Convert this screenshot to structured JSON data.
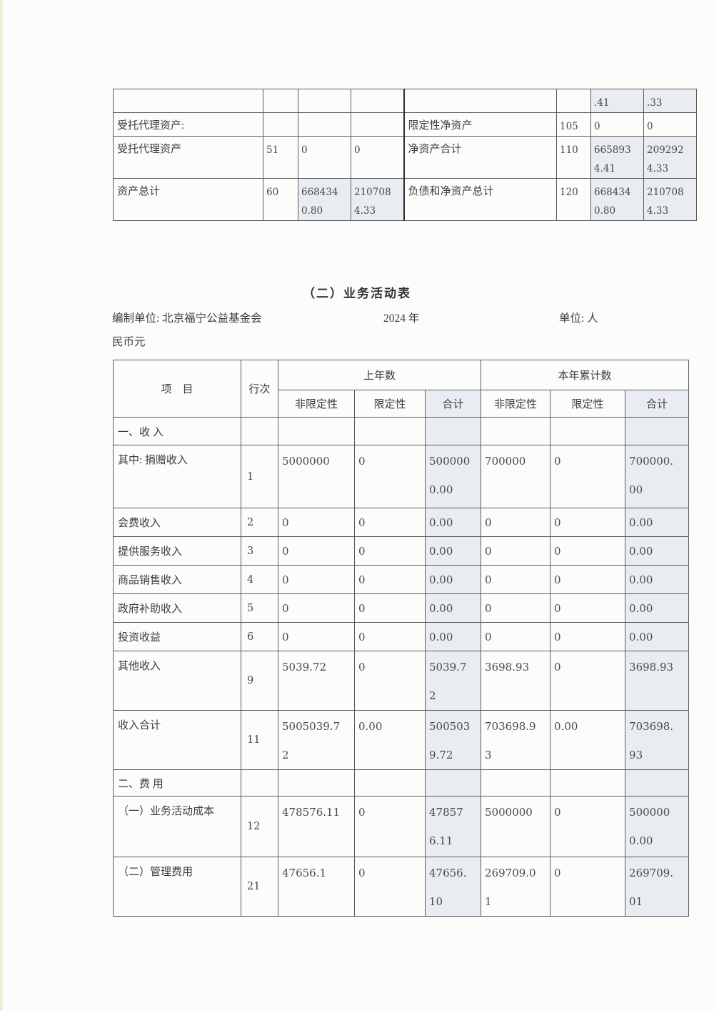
{
  "balance_sheet_fragment": {
    "rows": [
      {
        "cells": [
          "",
          "",
          "",
          "",
          "",
          "",
          ".41",
          ".33"
        ]
      },
      {
        "cells": [
          "受托代理资产:",
          "",
          "",
          "",
          "限定性净资产",
          "105",
          "0",
          "0"
        ]
      },
      {
        "cells": [
          "受托代理资产",
          "51",
          "0",
          "0",
          "净资产合计",
          "110",
          "6658934.41",
          "2092924.33"
        ]
      },
      {
        "cells": [
          "资产总计",
          "60",
          "6684340.80",
          "2107084.33",
          "负债和净资产总计",
          "120",
          "6684340.80",
          "2107084.33"
        ]
      }
    ]
  },
  "section_title": "（二）业务活动表",
  "meta": {
    "prepared_by": "编制单位: 北京福宁公益基金会",
    "year": "2024 年",
    "unit": "单位: 人",
    "unit_cont": "民币元"
  },
  "activity_table": {
    "header": {
      "item": "项　目",
      "line_no": "行次",
      "prev_year": "上年数",
      "current_year": "本年累计数",
      "sub": [
        "非限定性",
        "限定性",
        "合计",
        "非限定性",
        "限定性",
        "合计"
      ]
    },
    "rows": [
      {
        "type": "section",
        "label": "一、收  入",
        "line": "",
        "values": [
          "",
          "",
          "",
          "",
          "",
          ""
        ]
      },
      {
        "type": "data",
        "label": "其中: 捐赠收入",
        "line": "1",
        "values": [
          "5000000",
          "0",
          "5000000.00",
          "700000",
          "0",
          "700000.00"
        ]
      },
      {
        "type": "data",
        "label": "会费收入",
        "line": "2",
        "values": [
          "0",
          "0",
          "0.00",
          "0",
          "0",
          "0.00"
        ]
      },
      {
        "type": "data",
        "label": "提供服务收入",
        "line": "3",
        "values": [
          "0",
          "0",
          "0.00",
          "0",
          "0",
          "0.00"
        ]
      },
      {
        "type": "data",
        "label": "商品销售收入",
        "line": "4",
        "values": [
          "0",
          "0",
          "0.00",
          "0",
          "0",
          "0.00"
        ]
      },
      {
        "type": "data",
        "label": "政府补助收入",
        "line": "5",
        "values": [
          "0",
          "0",
          "0.00",
          "0",
          "0",
          "0.00"
        ]
      },
      {
        "type": "data",
        "label": "投资收益",
        "line": "6",
        "values": [
          "0",
          "0",
          "0.00",
          "0",
          "0",
          "0.00"
        ]
      },
      {
        "type": "data",
        "label": "其他收入",
        "line": "9",
        "values": [
          "5039.72",
          "0",
          "5039.72",
          "3698.93",
          "0",
          "3698.93"
        ]
      },
      {
        "type": "data",
        "label": "收入合计",
        "line": "11",
        "values": [
          "5005039.72",
          "0.00",
          "5005039.72",
          "703698.93",
          "0.00",
          "703698.93"
        ]
      },
      {
        "type": "section",
        "label": "二、费  用",
        "line": "",
        "values": [
          "",
          "",
          "",
          "",
          "",
          ""
        ]
      },
      {
        "type": "data",
        "label": "（一）业务活动成本",
        "line": "12",
        "values": [
          "478576.11",
          "0",
          "478576.11",
          "5000000",
          "0",
          "5000000.00"
        ]
      },
      {
        "type": "data",
        "label": "（二）管理费用",
        "line": "21",
        "values": [
          "47656.1",
          "0",
          "47656.10",
          "269709.01",
          "0",
          "269709.01"
        ]
      }
    ]
  }
}
